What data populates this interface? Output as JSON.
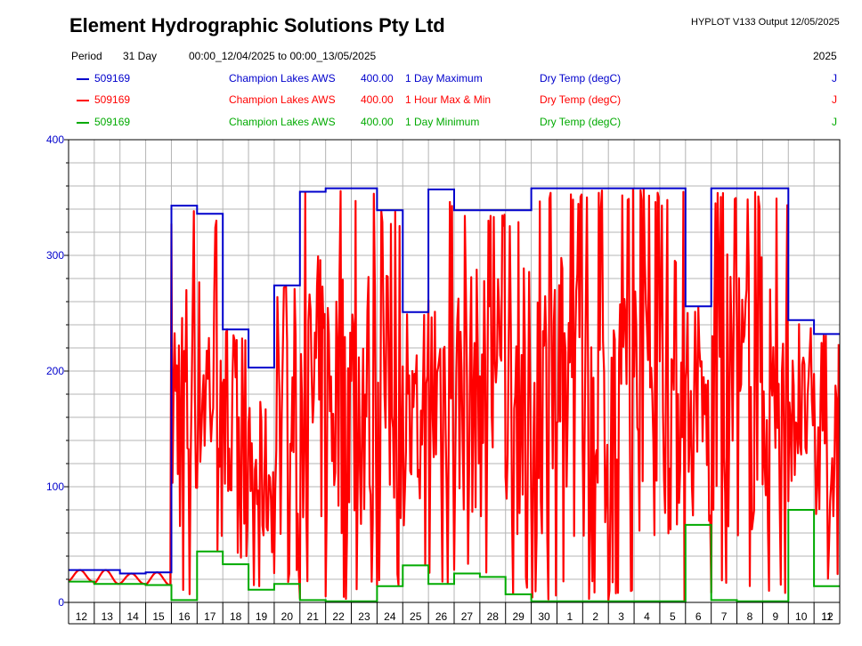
{
  "header": {
    "title": "Element Hydrographic Solutions Pty Ltd",
    "program": "HYPLOT V133  Output 12/05/2025",
    "period_label": "Period",
    "period_value": "31 Day",
    "period_range": "00:00_12/04/2025 to 00:00_13/05/2025",
    "year": "2025"
  },
  "legend": [
    {
      "site": "509169",
      "name": "Champion Lakes AWS",
      "varnum": "400.00",
      "desc": "1 Day Maximum",
      "variable": "Dry Temp (degC)",
      "flag": "J",
      "color": "#0000cc"
    },
    {
      "site": "509169",
      "name": "Champion Lakes AWS",
      "varnum": "400.00",
      "desc": "1 Hour Max & Min",
      "variable": "Dry Temp (degC)",
      "flag": "J",
      "color": "#ff0000"
    },
    {
      "site": "509169",
      "name": "Champion Lakes AWS",
      "varnum": "400.00",
      "desc": "1 Day Minimum",
      "variable": "Dry Temp (degC)",
      "flag": "J",
      "color": "#00aa00"
    }
  ],
  "chart_data": {
    "type": "line",
    "ylim": [
      0,
      400
    ],
    "yticks": [
      0,
      100,
      200,
      300,
      400
    ],
    "grid": true,
    "legend_position": "top",
    "x_tick_labels": [
      "12",
      "13",
      "14",
      "15",
      "16",
      "17",
      "18",
      "19",
      "20",
      "21",
      "22",
      "23",
      "24",
      "25",
      "26",
      "27",
      "28",
      "29",
      "30",
      "1",
      "2",
      "3",
      "4",
      "5",
      "6",
      "7",
      "8",
      "9",
      "10",
      "11",
      "12"
    ],
    "series": [
      {
        "name": "1 Day Maximum",
        "color": "#0000cc",
        "step": true,
        "day_start": [
          "12/04",
          "13/04",
          "14/04",
          "15/04",
          "16/04",
          "17/04",
          "18/04",
          "19/04",
          "20/04",
          "21/04",
          "22/04",
          "23/04",
          "24/04",
          "25/04",
          "26/04",
          "27/04",
          "28/04",
          "29/04",
          "30/04",
          "01/05",
          "02/05",
          "03/05",
          "04/05",
          "05/05",
          "06/05",
          "07/05",
          "08/05",
          "09/05",
          "10/05",
          "11/05"
        ],
        "values": [
          28,
          28,
          25,
          26,
          343,
          336,
          236,
          203,
          274,
          355,
          358,
          358,
          339,
          251,
          357,
          339,
          339,
          339,
          358,
          358,
          358,
          358,
          358,
          358,
          256,
          358,
          358,
          358,
          244,
          232
        ]
      },
      {
        "name": "1 Day Minimum",
        "color": "#00aa00",
        "step": true,
        "day_start": [
          "12/04",
          "13/04",
          "14/04",
          "15/04",
          "16/04",
          "17/04",
          "18/04",
          "19/04",
          "20/04",
          "21/04",
          "22/04",
          "23/04",
          "24/04",
          "25/04",
          "26/04",
          "27/04",
          "28/04",
          "29/04",
          "30/04",
          "01/05",
          "02/05",
          "03/05",
          "04/05",
          "05/05",
          "06/05",
          "07/05",
          "08/05",
          "09/05",
          "10/05",
          "11/05"
        ],
        "values": [
          18,
          16,
          16,
          15,
          2,
          44,
          33,
          11,
          16,
          2,
          1,
          1,
          14,
          32,
          16,
          25,
          22,
          7,
          1,
          1,
          1,
          1,
          1,
          1,
          67,
          2,
          1,
          1,
          80,
          14
        ]
      },
      {
        "name": "1 Hour Max & Min",
        "color": "#ff0000",
        "step": false,
        "daily_range": [
          [
            18,
            28
          ],
          [
            16,
            28
          ],
          [
            16,
            25
          ],
          [
            15,
            26
          ],
          [
            2,
            343
          ],
          [
            44,
            336
          ],
          [
            33,
            236
          ],
          [
            11,
            203
          ],
          [
            16,
            274
          ],
          [
            2,
            355
          ],
          [
            1,
            358
          ],
          [
            1,
            358
          ],
          [
            14,
            339
          ],
          [
            32,
            251
          ],
          [
            16,
            357
          ],
          [
            25,
            339
          ],
          [
            22,
            339
          ],
          [
            7,
            339
          ],
          [
            1,
            358
          ],
          [
            1,
            358
          ],
          [
            1,
            358
          ],
          [
            1,
            358
          ],
          [
            1,
            358
          ],
          [
            1,
            358
          ],
          [
            67,
            256
          ],
          [
            2,
            358
          ],
          [
            1,
            358
          ],
          [
            1,
            358
          ],
          [
            80,
            244
          ],
          [
            14,
            232
          ]
        ]
      }
    ]
  }
}
